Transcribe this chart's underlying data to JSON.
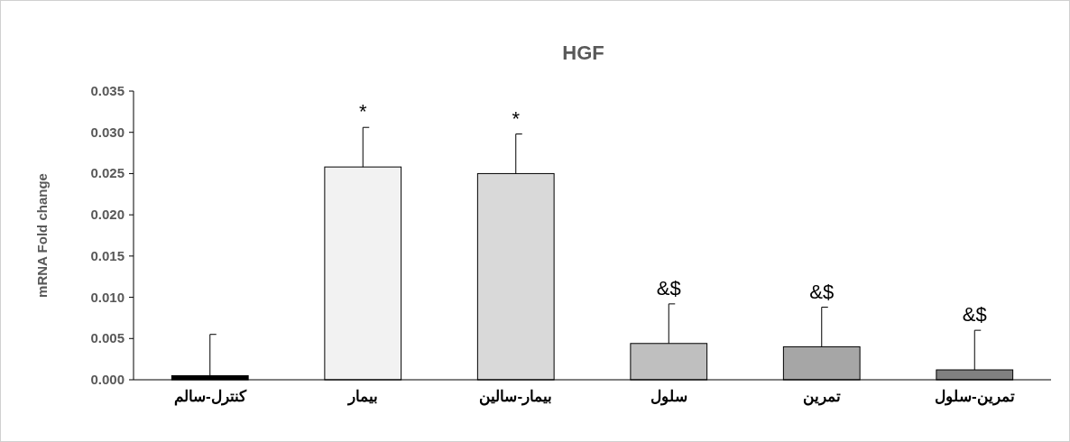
{
  "chart_data": {
    "type": "bar",
    "title": "HGF",
    "ylabel": "mRNA Fold change",
    "categories": [
      "کنترل-سالم",
      "بیمار",
      "بیمار-سالین",
      "سلول",
      "تمرین",
      "تمرین-سلول"
    ],
    "values": [
      0.0005,
      0.0258,
      0.025,
      0.0044,
      0.004,
      0.0012
    ],
    "colors": [
      "#000000",
      "#f2f2f2",
      "#d9d9d9",
      "#bfbfbf",
      "#a6a6a6",
      "#808080"
    ],
    "errors": [
      [
        0.0005,
        0.0055
      ],
      [
        0.0258,
        0.0306
      ],
      [
        0.025,
        0.0298
      ],
      [
        0.0044,
        0.0092
      ],
      [
        0.004,
        0.0088
      ],
      [
        0.0012,
        0.006
      ]
    ],
    "ylim": [
      0,
      0.035
    ],
    "yticks": [
      {
        "value": 0,
        "label": "0.000"
      },
      {
        "value": 0.005,
        "label": "0.005"
      },
      {
        "value": 0.01,
        "label": "0.010"
      },
      {
        "value": 0.015,
        "label": "0.015"
      },
      {
        "value": 0.02,
        "label": "0.020"
      },
      {
        "value": 0.025,
        "label": "0.025"
      },
      {
        "value": 0.03,
        "label": "0.030"
      },
      {
        "value": 0.035,
        "label": "0.035"
      }
    ],
    "grid": false,
    "annotations": [
      {
        "text": "*",
        "x": "بیمار",
        "y": 0.0306
      },
      {
        "text": "*",
        "x": "بیمار-سالین",
        "y": 0.0298
      },
      {
        "text": "&$",
        "x": "سلول",
        "y": 0.0092
      },
      {
        "text": "&$",
        "x": "تمرین",
        "y": 0.0088
      },
      {
        "text": "&$",
        "x": "تمرین-سلول",
        "y": 0.006
      }
    ]
  }
}
